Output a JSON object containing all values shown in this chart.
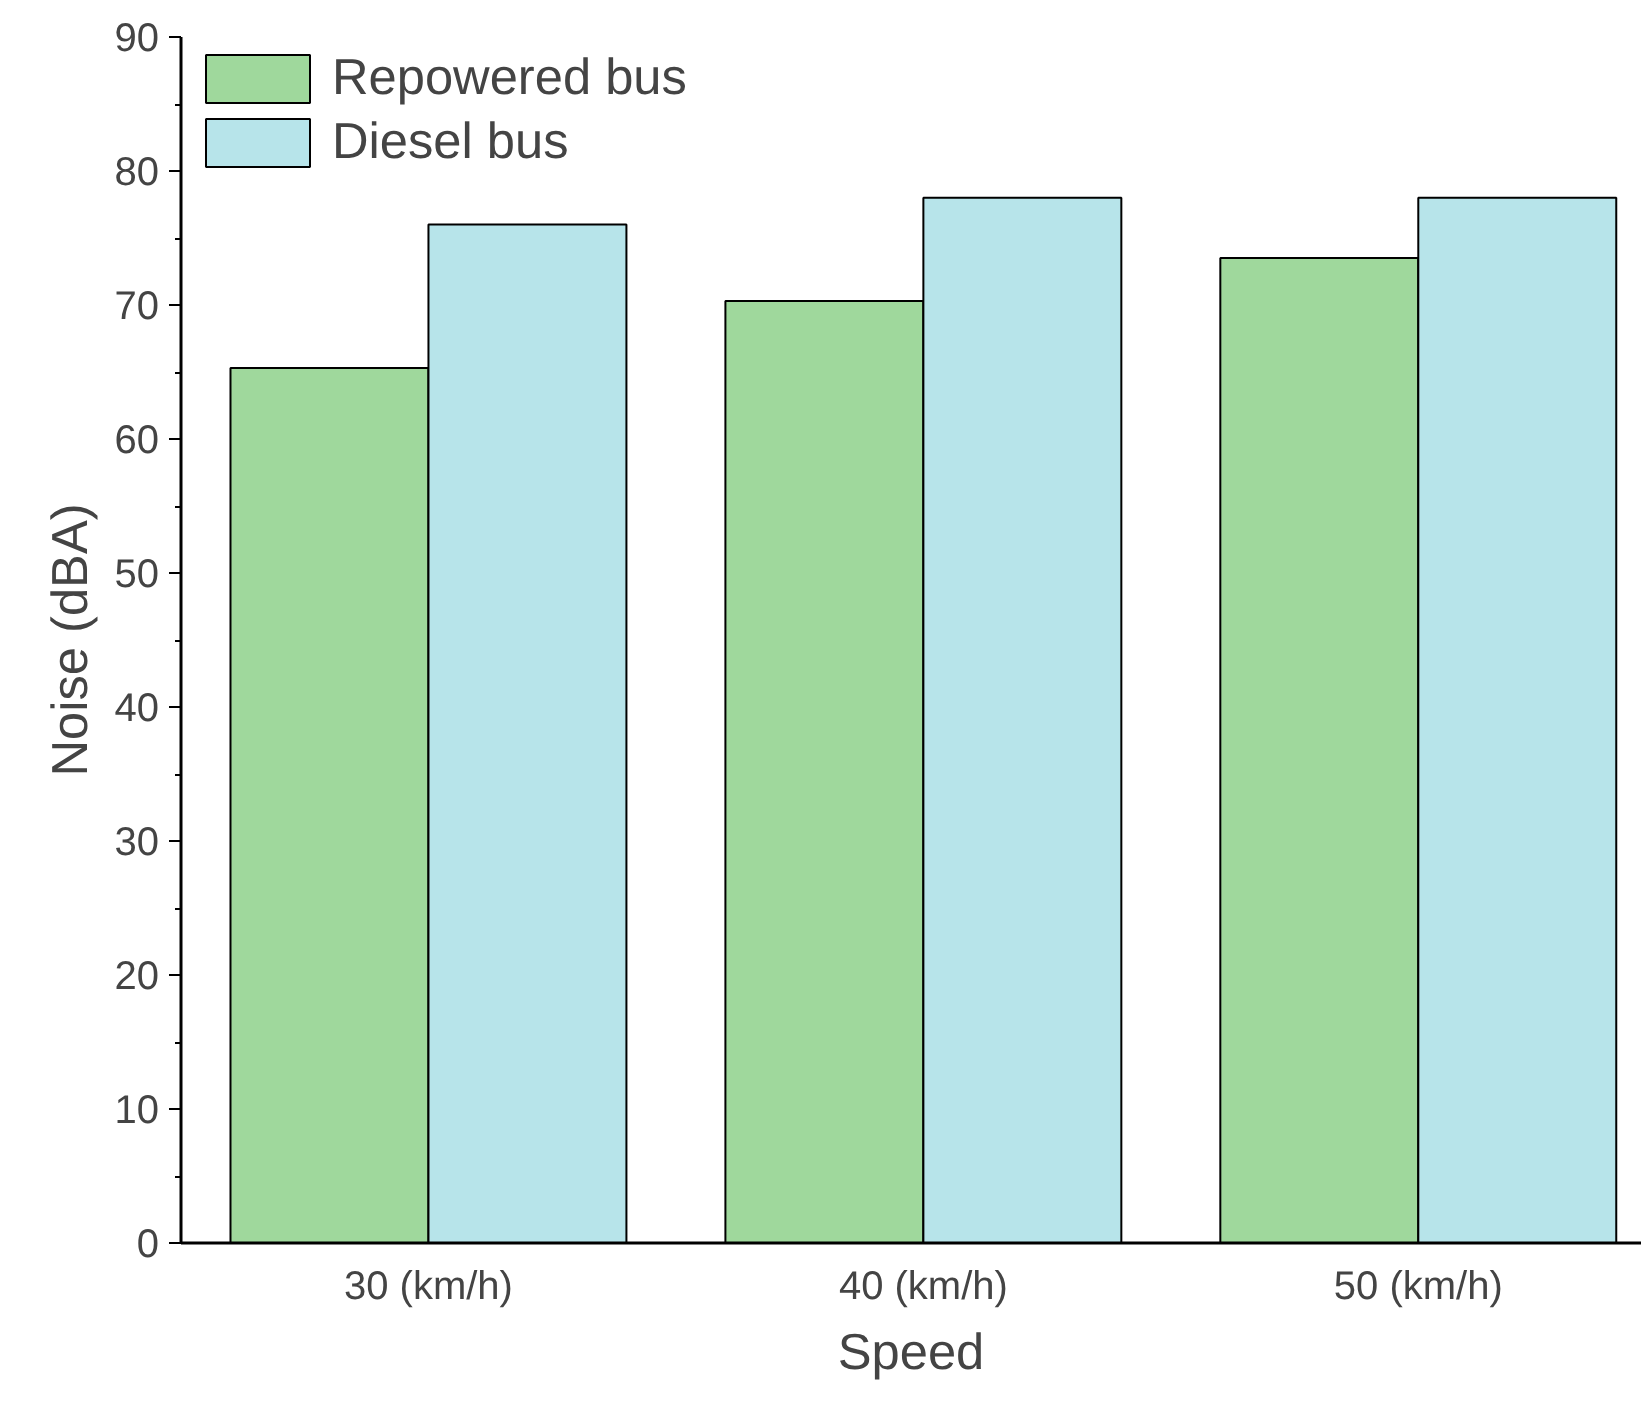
{
  "chart_data": {
    "type": "bar",
    "xlabel": "Speed",
    "ylabel": "Noise (dBA)",
    "categories": [
      "30 (km/h)",
      "40 (km/h)",
      "50 (km/h)"
    ],
    "series": [
      {
        "name": "Repowered bus",
        "color": "#9fd89c",
        "values": [
          65.3,
          70.3,
          73.5
        ]
      },
      {
        "name": "Diesel bus",
        "color": "#b7e4ea",
        "values": [
          76,
          78,
          78
        ]
      }
    ],
    "ylim": [
      0,
      90
    ],
    "yticks": [
      0,
      10,
      20,
      30,
      40,
      50,
      60,
      70,
      80,
      90
    ],
    "grid": false,
    "legend": "top left"
  }
}
